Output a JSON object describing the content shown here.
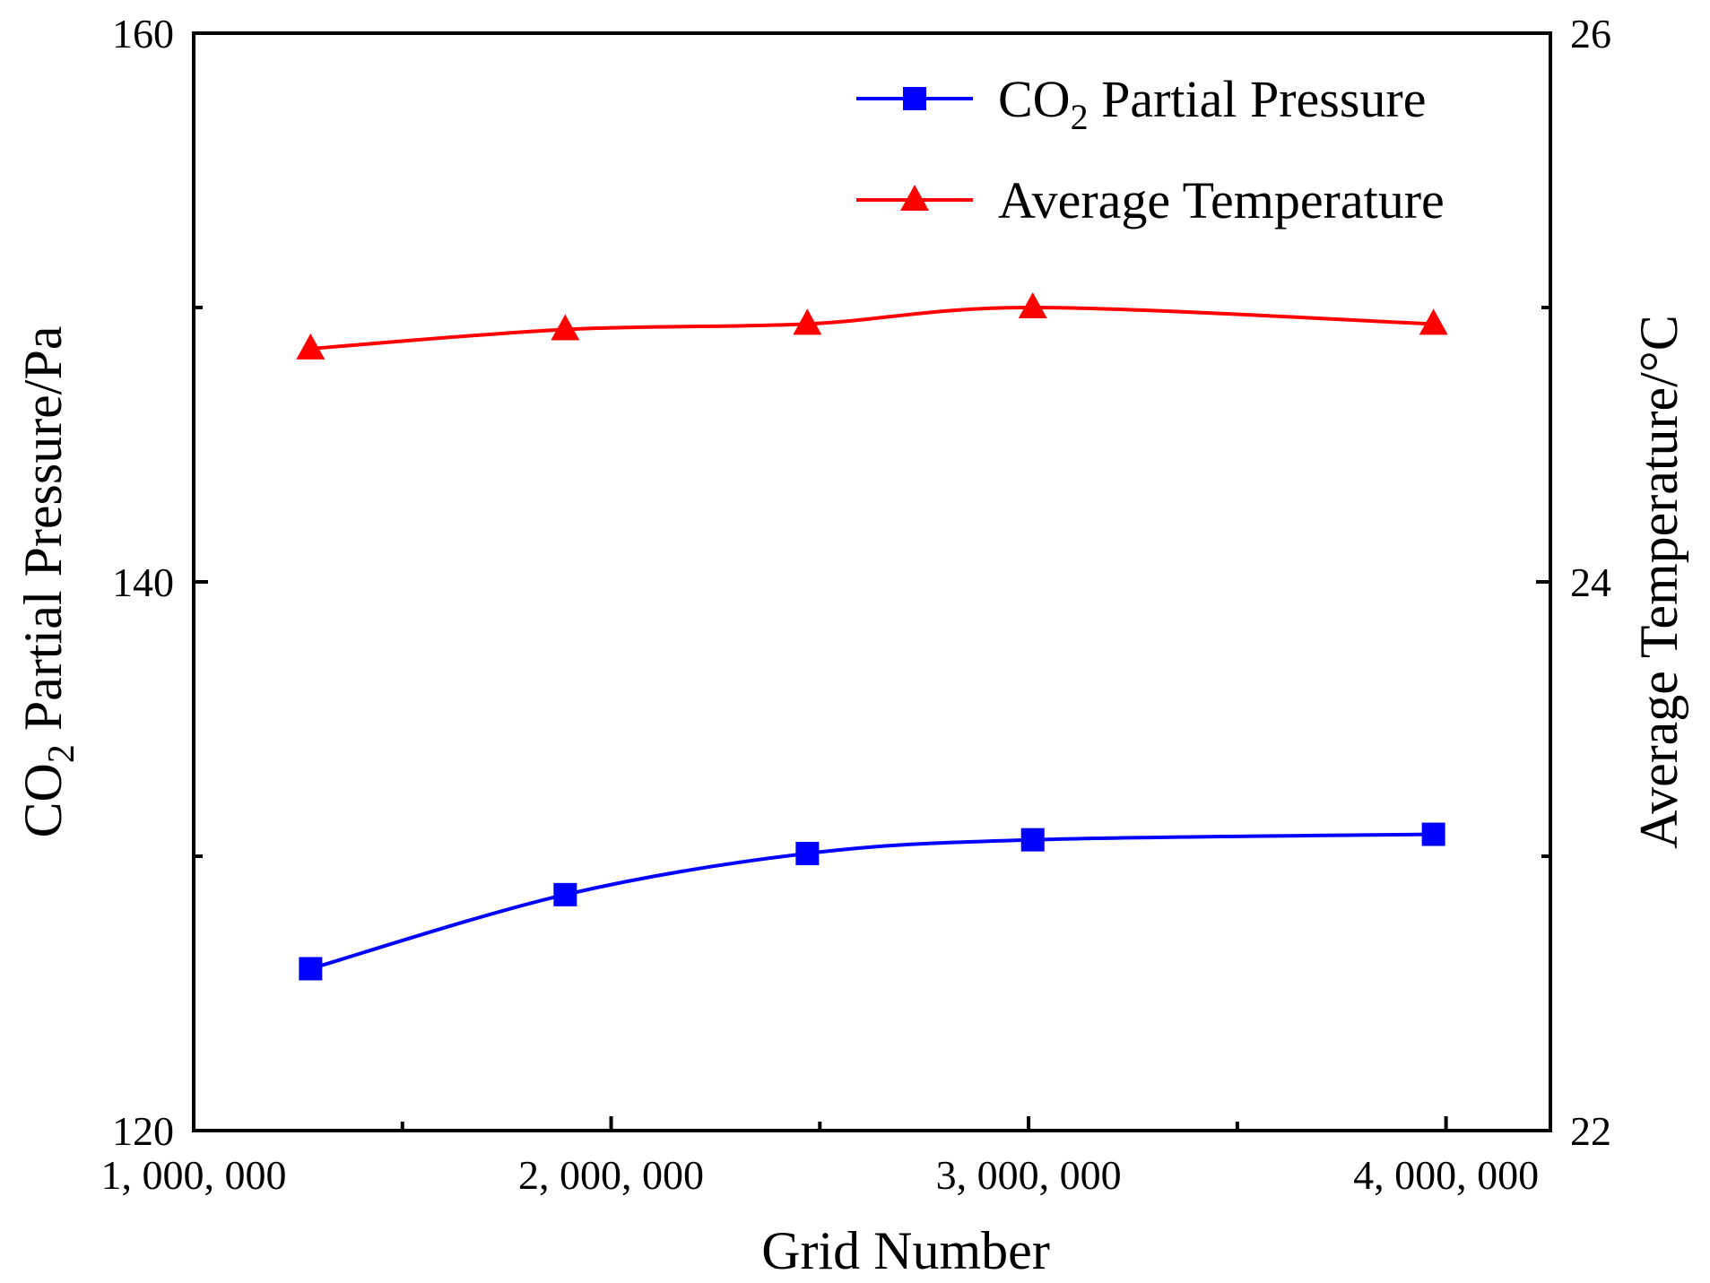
{
  "chart_data": {
    "type": "line",
    "xlabel": "Grid Number",
    "xlim": [
      1000000,
      4250000
    ],
    "x_ticks": [
      {
        "value": 1000000,
        "label": "1, 000, 000"
      },
      {
        "value": 2000000,
        "label": "2, 000, 000"
      },
      {
        "value": 3000000,
        "label": "3, 000, 000"
      },
      {
        "value": 4000000,
        "label": "4, 000, 000"
      }
    ],
    "x_minor_ticks": [
      1500000,
      2500000,
      3500000
    ],
    "y_left": {
      "label_main": "CO",
      "label_sub": "2",
      "label_rest": " Partial Pressure/Pa",
      "lim": [
        120,
        160
      ],
      "ticks": [
        120,
        140,
        160
      ],
      "minor_ticks": [
        130,
        150
      ]
    },
    "y_right": {
      "label": "Average Temperature/°C",
      "lim": [
        22,
        26
      ],
      "ticks": [
        22,
        24,
        26
      ],
      "minor_ticks": [
        23,
        25
      ]
    },
    "series": [
      {
        "name": "CO₂ Partial Pressure",
        "legend_main": "CO",
        "legend_sub": "2",
        "legend_rest": " Partial Pressure",
        "axis": "left",
        "color": "#0000ff",
        "marker": "square",
        "x": [
          1280000,
          1890000,
          2470000,
          3010000,
          3970000
        ],
        "values": [
          125.9,
          128.6,
          130.1,
          130.6,
          130.8
        ]
      },
      {
        "name": "Average Temperature",
        "legend_main": "Average Temperature",
        "legend_sub": "",
        "legend_rest": "",
        "axis": "right",
        "color": "#ff0000",
        "marker": "triangle",
        "x": [
          1280000,
          1890000,
          2470000,
          3010000,
          3970000
        ],
        "values": [
          24.85,
          24.92,
          24.94,
          25.0,
          24.94
        ]
      }
    ],
    "legend_position": "top-right"
  }
}
